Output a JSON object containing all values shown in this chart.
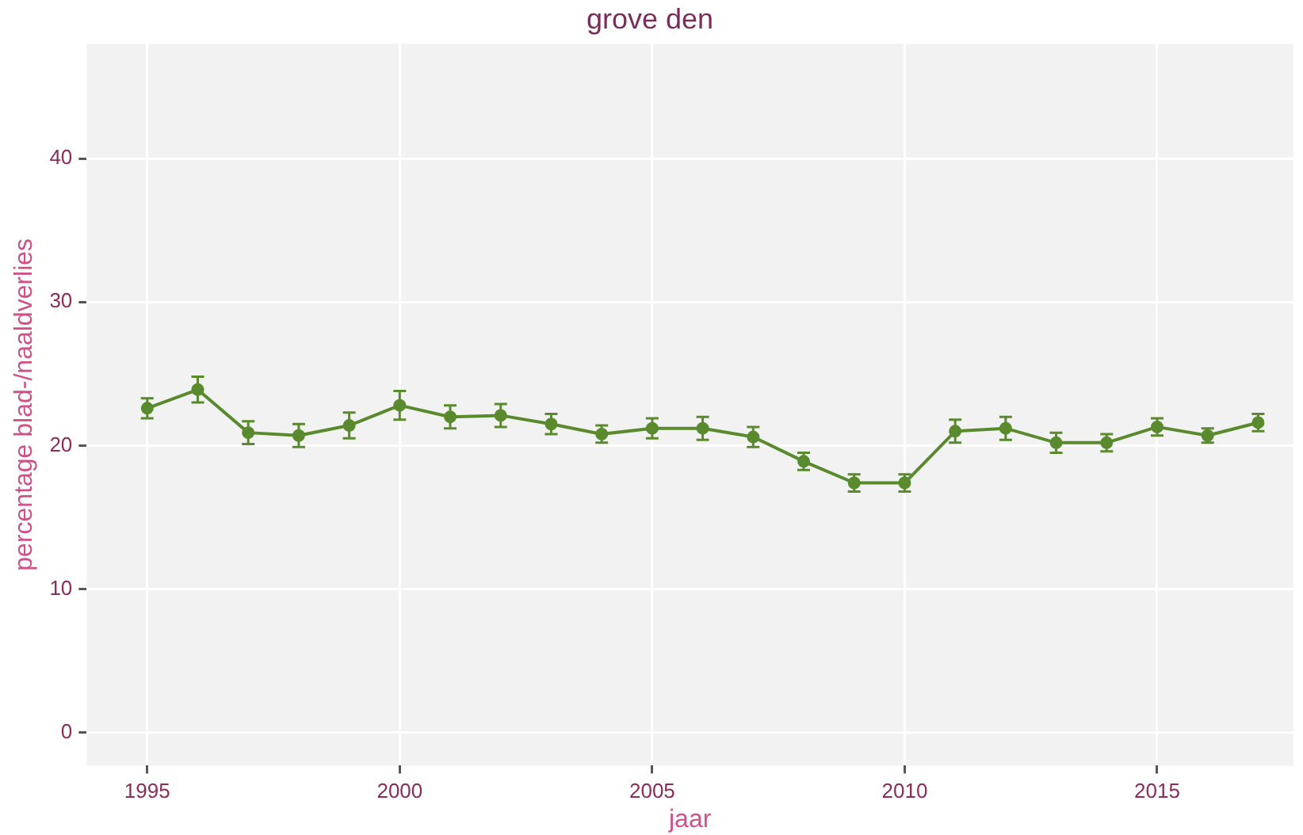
{
  "chart_data": {
    "type": "line",
    "title": "grove den",
    "xlabel": "jaar",
    "ylabel": "percentage blad-/naaldverlies",
    "x": [
      1995,
      1996,
      1997,
      1998,
      1999,
      2000,
      2001,
      2002,
      2003,
      2004,
      2005,
      2006,
      2007,
      2008,
      2009,
      2010,
      2011,
      2012,
      2013,
      2014,
      2015,
      2016,
      2017
    ],
    "series": [
      {
        "color": "#5a8a2e",
        "values": [
          22.6,
          23.9,
          20.9,
          20.7,
          21.4,
          22.8,
          22.0,
          22.1,
          21.5,
          20.8,
          21.2,
          21.2,
          20.6,
          18.9,
          17.4,
          17.4,
          21.0,
          21.2,
          20.2,
          20.2,
          21.3,
          20.7,
          21.6
        ],
        "errors": [
          0.7,
          0.9,
          0.8,
          0.8,
          0.9,
          1.0,
          0.8,
          0.8,
          0.7,
          0.6,
          0.7,
          0.8,
          0.7,
          0.6,
          0.6,
          0.6,
          0.8,
          0.8,
          0.7,
          0.6,
          0.6,
          0.5,
          0.6
        ]
      }
    ],
    "xlim": [
      1993.8,
      2017.7
    ],
    "xticks": [
      1995,
      2000,
      2005,
      2010,
      2015
    ],
    "ylim": [
      -2.3,
      48
    ],
    "yticks": [
      0,
      10,
      20,
      30,
      40
    ],
    "grid": true,
    "legend": false,
    "marker": "circle",
    "line_style": "solid"
  }
}
